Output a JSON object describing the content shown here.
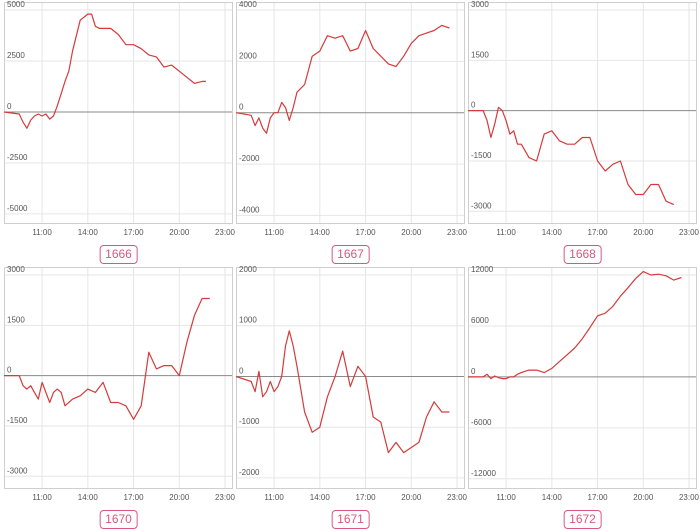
{
  "colors": {
    "line": "#d63a3a",
    "zero_line": "#8a8a8a",
    "grid": "#e6e6e6",
    "frame": "#cfcfcf",
    "badge": "#d8587f"
  },
  "chart_data": [
    {
      "type": "line",
      "code": "1666",
      "x_ticks": [
        "11:00",
        "14:00",
        "17:00",
        "20:00",
        "23:00"
      ],
      "y_ticks": [
        "5000",
        "2500",
        "0",
        "-2500",
        "-5000"
      ],
      "ylim": [
        -5200,
        5000
      ],
      "xlim": [
        8.5,
        23
      ],
      "x": [
        8.5,
        9.5,
        9.75,
        10,
        10.25,
        10.5,
        10.75,
        11,
        11.25,
        11.5,
        11.75,
        12,
        12.25,
        12.5,
        12.75,
        13,
        13.5,
        14,
        14.25,
        14.5,
        14.75,
        15,
        15.5,
        16,
        16.5,
        17,
        17.5,
        18,
        18.5,
        19,
        19.5,
        20,
        20.5,
        21,
        21.5,
        21.75
      ],
      "y": [
        0,
        -100,
        -500,
        -800,
        -400,
        -200,
        -100,
        -200,
        -100,
        -350,
        -200,
        300,
        900,
        1500,
        2000,
        3000,
        4500,
        4800,
        4800,
        4200,
        4100,
        4100,
        4100,
        3800,
        3300,
        3300,
        3100,
        2800,
        2700,
        2200,
        2300,
        2000,
        1700,
        1400,
        1500,
        1500
      ]
    },
    {
      "type": "line",
      "code": "1667",
      "x_ticks": [
        "11:00",
        "14:00",
        "17:00",
        "20:00",
        "23:00"
      ],
      "y_ticks": [
        "4000",
        "2000",
        "0",
        "-2000",
        "-4000"
      ],
      "ylim": [
        -4100,
        4000
      ],
      "xlim": [
        8.5,
        23
      ],
      "x": [
        8.5,
        9.5,
        9.75,
        10,
        10.25,
        10.5,
        10.75,
        11,
        11.25,
        11.5,
        11.75,
        12,
        12.25,
        12.5,
        13,
        13.5,
        14,
        14.5,
        15,
        15.5,
        16,
        16.5,
        17,
        17.5,
        18,
        18.5,
        19,
        19.5,
        20,
        20.5,
        21,
        21.5,
        22,
        22.5
      ],
      "y": [
        0,
        -100,
        -500,
        -200,
        -600,
        -800,
        -200,
        0,
        0,
        400,
        200,
        -300,
        200,
        800,
        1100,
        2200,
        2400,
        3000,
        2900,
        3000,
        2400,
        2500,
        3200,
        2500,
        2200,
        1900,
        1800,
        2200,
        2700,
        3000,
        3100,
        3200,
        3400,
        3300
      ]
    },
    {
      "type": "line",
      "code": "1668",
      "x_ticks": [
        "11:00",
        "14:00",
        "17:00",
        "20:00",
        "23:00"
      ],
      "y_ticks": [
        "3000",
        "1500",
        "0",
        "-1500",
        "-3000"
      ],
      "ylim": [
        -3200,
        3000
      ],
      "xlim": [
        8.5,
        23
      ],
      "x": [
        8.5,
        9.5,
        9.75,
        10,
        10.25,
        10.5,
        10.75,
        11,
        11.25,
        11.5,
        11.75,
        12,
        12.5,
        13,
        13.5,
        14,
        14.5,
        15,
        15.5,
        16,
        16.5,
        17,
        17.5,
        18,
        18.5,
        19,
        19.5,
        20,
        20.5,
        21,
        21.5,
        22
      ],
      "y": [
        0,
        0,
        -300,
        -800,
        -400,
        100,
        0,
        -300,
        -700,
        -600,
        -1000,
        -1000,
        -1400,
        -1500,
        -700,
        -600,
        -900,
        -1000,
        -1000,
        -800,
        -800,
        -1500,
        -1800,
        -1600,
        -1500,
        -2200,
        -2500,
        -2500,
        -2200,
        -2200,
        -2700,
        -2800
      ]
    },
    {
      "type": "line",
      "code": "1670",
      "x_ticks": [
        "11:00",
        "14:00",
        "17:00",
        "20:00",
        "23:00"
      ],
      "y_ticks": [
        "3000",
        "1500",
        "0",
        "-1500",
        "-3000"
      ],
      "ylim": [
        -3200,
        3000
      ],
      "xlim": [
        8.5,
        23
      ],
      "x": [
        8.5,
        9.5,
        9.75,
        10,
        10.25,
        10.5,
        10.75,
        11,
        11.25,
        11.5,
        11.75,
        12,
        12.25,
        12.5,
        13,
        13.5,
        14,
        14.5,
        15,
        15.5,
        16,
        16.5,
        17,
        17.5,
        18,
        18.5,
        19,
        19.5,
        20,
        20.5,
        21,
        21.5,
        22
      ],
      "y": [
        0,
        0,
        -300,
        -400,
        -300,
        -500,
        -700,
        -200,
        -500,
        -800,
        -500,
        -400,
        -500,
        -900,
        -700,
        -600,
        -400,
        -500,
        -200,
        -800,
        -800,
        -900,
        -1300,
        -900,
        700,
        200,
        300,
        300,
        0,
        1000,
        1800,
        2300,
        2300
      ]
    },
    {
      "type": "line",
      "code": "1671",
      "x_ticks": [
        "11:00",
        "14:00",
        "17:00",
        "20:00",
        "23:00"
      ],
      "y_ticks": [
        "2000",
        "1000",
        "0",
        "-1000",
        "-2000"
      ],
      "ylim": [
        -2100,
        2000
      ],
      "xlim": [
        8.5,
        23
      ],
      "x": [
        8.5,
        9.5,
        9.75,
        10,
        10.25,
        10.5,
        10.75,
        11,
        11.25,
        11.5,
        11.75,
        12,
        12.25,
        12.5,
        13,
        13.5,
        14,
        14.5,
        15,
        15.5,
        16,
        16.5,
        17,
        17.5,
        18,
        18.5,
        19,
        19.5,
        20,
        20.5,
        21,
        21.5,
        22,
        22.5
      ],
      "y": [
        0,
        -100,
        -300,
        100,
        -400,
        -300,
        -100,
        -300,
        -200,
        0,
        600,
        900,
        600,
        200,
        -700,
        -1100,
        -1000,
        -400,
        0,
        500,
        -200,
        200,
        0,
        -800,
        -900,
        -1500,
        -1300,
        -1500,
        -1400,
        -1300,
        -800,
        -500,
        -700,
        -700
      ]
    },
    {
      "type": "line",
      "code": "1672",
      "x_ticks": [
        "11:00",
        "14:00",
        "17:00",
        "20:00",
        "23:00"
      ],
      "y_ticks": [
        "12000",
        "6000",
        "0",
        "-6000",
        "-12000"
      ],
      "ylim": [
        -12500,
        12000
      ],
      "xlim": [
        8.5,
        23
      ],
      "x": [
        8.5,
        9.5,
        9.75,
        10,
        10.25,
        10.5,
        10.75,
        11,
        11.25,
        11.5,
        11.75,
        12,
        12.5,
        13,
        13.5,
        14,
        14.5,
        15,
        15.5,
        16,
        16.5,
        17,
        17.5,
        18,
        18.5,
        19,
        19.5,
        20,
        20.5,
        21,
        21.5,
        22,
        22.5
      ],
      "y": [
        0,
        0,
        300,
        -200,
        100,
        -100,
        -200,
        -200,
        0,
        0,
        300,
        500,
        800,
        800,
        500,
        1000,
        1800,
        2600,
        3400,
        4500,
        5800,
        7200,
        7500,
        8300,
        9500,
        10500,
        11600,
        12400,
        12000,
        12100,
        11900,
        11400,
        11700
      ]
    }
  ]
}
